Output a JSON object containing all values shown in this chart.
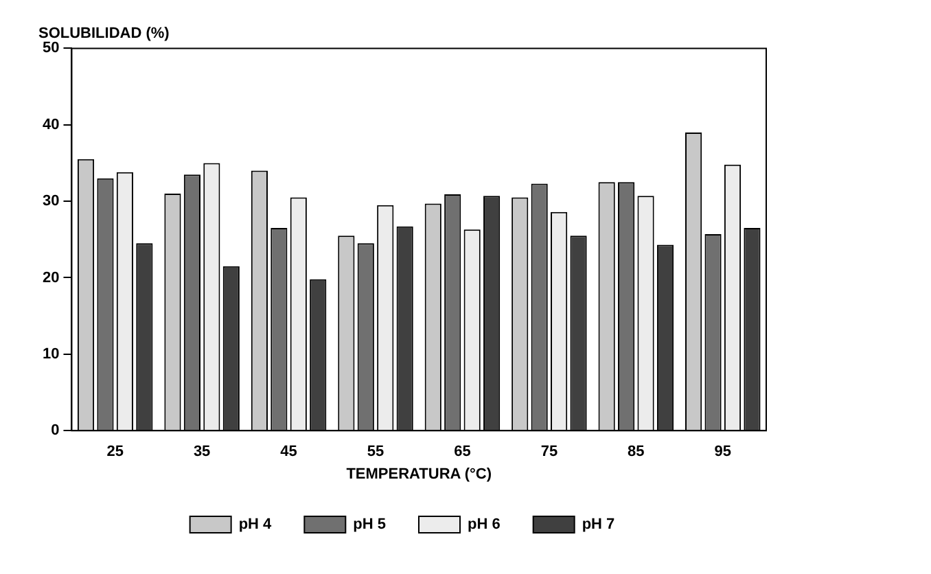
{
  "chart_data": {
    "type": "bar",
    "ylabel": "SOLUBILIDAD (%)",
    "xlabel": "TEMPERATURA (°C)",
    "categories": [
      "25",
      "35",
      "45",
      "55",
      "65",
      "75",
      "85",
      "95"
    ],
    "series": [
      {
        "name": "pH 4",
        "color": "#c8c8c8",
        "values": [
          35.5,
          31,
          34,
          25.5,
          29.7,
          30.5,
          32.5,
          39
        ]
      },
      {
        "name": "pH 5",
        "color": "#707070",
        "values": [
          33,
          33.5,
          26.5,
          24.5,
          30.9,
          32.3,
          32.5,
          25.7
        ]
      },
      {
        "name": "pH 6",
        "color": "#ececec",
        "values": [
          33.8,
          35,
          30.5,
          29.5,
          26.3,
          28.6,
          30.7,
          34.8
        ]
      },
      {
        "name": "pH 7",
        "color": "#404040",
        "values": [
          24.5,
          21.5,
          19.8,
          26.7,
          30.7,
          25.5,
          24.3,
          26.5
        ]
      }
    ],
    "ylim": [
      0,
      50
    ],
    "yticks": [
      0,
      10,
      20,
      30,
      40,
      50
    ],
    "grid": false,
    "legend": "bottom"
  }
}
